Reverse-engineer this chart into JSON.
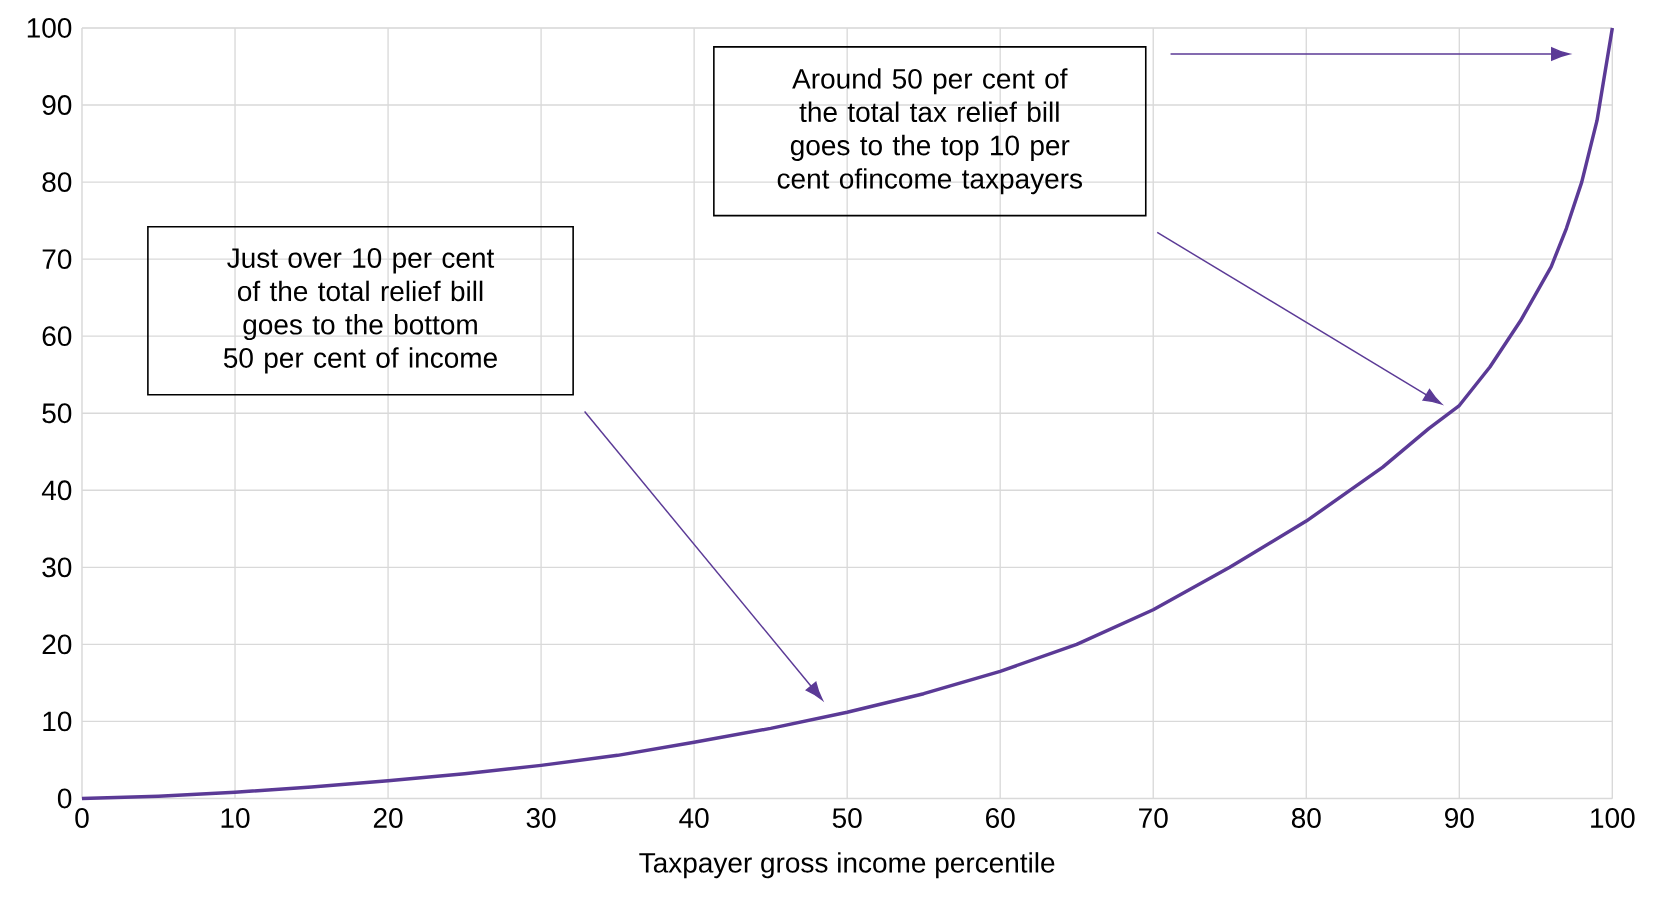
{
  "chart_data": {
    "type": "line",
    "xlabel": "Taxpayer gross income percentile",
    "x": [
      0,
      5,
      10,
      15,
      20,
      25,
      30,
      35,
      40,
      45,
      50,
      55,
      60,
      65,
      70,
      75,
      80,
      85,
      88,
      90,
      92,
      94,
      96,
      97,
      98,
      99,
      100
    ],
    "series": [
      {
        "color": "#5b3a96",
        "values": [
          0,
          0.3,
          0.8,
          1.5,
          2.3,
          3.2,
          4.3,
          5.6,
          7.3,
          9.1,
          11.2,
          13.6,
          16.5,
          20,
          24.5,
          30,
          36,
          43,
          48,
          51,
          56,
          62,
          69,
          74,
          80,
          88,
          100
        ]
      }
    ],
    "xlim": [
      0,
      100
    ],
    "ylim": [
      0,
      100
    ],
    "xticks": [
      0,
      10,
      20,
      30,
      40,
      50,
      60,
      70,
      80,
      90,
      100
    ],
    "yticks": [
      0,
      10,
      20,
      30,
      40,
      50,
      60,
      70,
      80,
      90,
      100
    ],
    "grid": true,
    "line_style": "solid",
    "marker": "none",
    "annotations": [
      "Just over 10 per cent of the total relief bill goes to the bottom 50 per cent of income",
      "Around 50 per cent of the total tax relief bill goes to the top 10 per cent ofincome taxpayers"
    ]
  }
}
